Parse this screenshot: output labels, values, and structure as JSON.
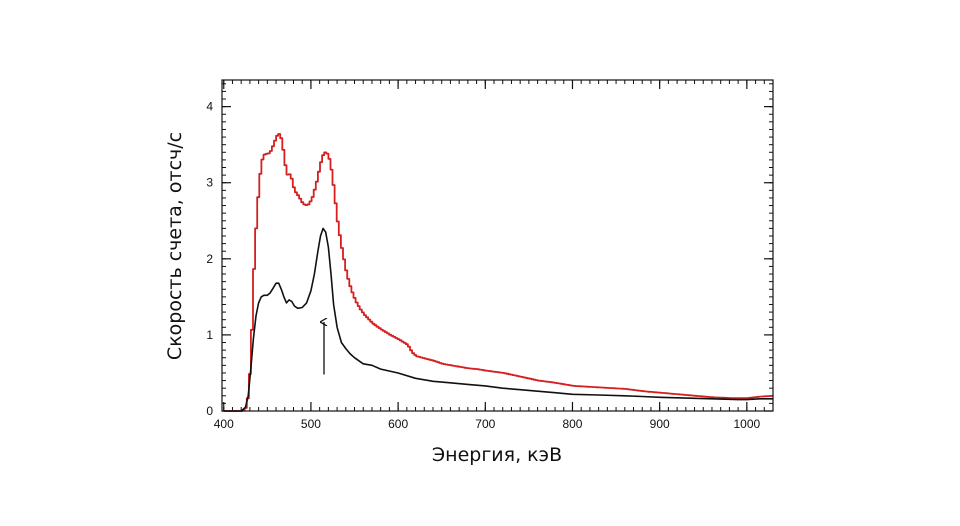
{
  "chart_data": {
    "type": "line",
    "xlabel": "Энергия, кэВ",
    "ylabel": "Скорость счета, отсч/с",
    "xlim": [
      398,
      1030
    ],
    "ylim": [
      0,
      4.35
    ],
    "x_ticks": [
      "400",
      "500",
      "600",
      "700",
      "800",
      "900",
      "1000"
    ],
    "y_ticks": [
      "0",
      "1",
      "2",
      "3",
      "4"
    ],
    "grid": false,
    "legend": "none",
    "series": [
      {
        "color": "#d42020",
        "style": "step",
        "points": [
          [
            400,
            0.0
          ],
          [
            420,
            0.0
          ],
          [
            425,
            0.05
          ],
          [
            428,
            0.3
          ],
          [
            431,
            1.0
          ],
          [
            434,
            2.0
          ],
          [
            437,
            2.6
          ],
          [
            440,
            3.05
          ],
          [
            443,
            3.3
          ],
          [
            446,
            3.38
          ],
          [
            450,
            3.38
          ],
          [
            453,
            3.42
          ],
          [
            456,
            3.5
          ],
          [
            459,
            3.6
          ],
          [
            462,
            3.65
          ],
          [
            465,
            3.58
          ],
          [
            468,
            3.38
          ],
          [
            471,
            3.1
          ],
          [
            474,
            3.12
          ],
          [
            477,
            3.05
          ],
          [
            480,
            2.9
          ],
          [
            485,
            2.82
          ],
          [
            490,
            2.72
          ],
          [
            495,
            2.7
          ],
          [
            500,
            2.78
          ],
          [
            505,
            2.98
          ],
          [
            509,
            3.2
          ],
          [
            512,
            3.35
          ],
          [
            515,
            3.4
          ],
          [
            518,
            3.38
          ],
          [
            521,
            3.28
          ],
          [
            524,
            3.05
          ],
          [
            527,
            2.75
          ],
          [
            530,
            2.45
          ],
          [
            535,
            2.1
          ],
          [
            540,
            1.8
          ],
          [
            545,
            1.6
          ],
          [
            550,
            1.45
          ],
          [
            555,
            1.35
          ],
          [
            560,
            1.27
          ],
          [
            570,
            1.15
          ],
          [
            580,
            1.07
          ],
          [
            590,
            1.0
          ],
          [
            600,
            0.94
          ],
          [
            610,
            0.87
          ],
          [
            615,
            0.77
          ],
          [
            620,
            0.72
          ],
          [
            630,
            0.69
          ],
          [
            640,
            0.66
          ],
          [
            650,
            0.62
          ],
          [
            660,
            0.6
          ],
          [
            670,
            0.58
          ],
          [
            680,
            0.56
          ],
          [
            690,
            0.55
          ],
          [
            700,
            0.53
          ],
          [
            720,
            0.5
          ],
          [
            740,
            0.45
          ],
          [
            760,
            0.4
          ],
          [
            780,
            0.37
          ],
          [
            800,
            0.33
          ],
          [
            830,
            0.31
          ],
          [
            860,
            0.29
          ],
          [
            880,
            0.26
          ],
          [
            900,
            0.24
          ],
          [
            920,
            0.22
          ],
          [
            940,
            0.2
          ],
          [
            960,
            0.18
          ],
          [
            980,
            0.17
          ],
          [
            1000,
            0.17
          ],
          [
            1015,
            0.19
          ],
          [
            1030,
            0.2
          ]
        ]
      },
      {
        "color": "#111111",
        "style": "line",
        "points": [
          [
            400,
            0.0
          ],
          [
            420,
            0.0
          ],
          [
            425,
            0.05
          ],
          [
            428,
            0.2
          ],
          [
            431,
            0.55
          ],
          [
            434,
            0.95
          ],
          [
            437,
            1.25
          ],
          [
            440,
            1.42
          ],
          [
            443,
            1.5
          ],
          [
            446,
            1.52
          ],
          [
            450,
            1.52
          ],
          [
            453,
            1.55
          ],
          [
            457,
            1.62
          ],
          [
            460,
            1.68
          ],
          [
            463,
            1.68
          ],
          [
            466,
            1.6
          ],
          [
            469,
            1.5
          ],
          [
            472,
            1.42
          ],
          [
            475,
            1.46
          ],
          [
            478,
            1.44
          ],
          [
            481,
            1.38
          ],
          [
            485,
            1.35
          ],
          [
            490,
            1.36
          ],
          [
            495,
            1.42
          ],
          [
            500,
            1.58
          ],
          [
            504,
            1.8
          ],
          [
            508,
            2.1
          ],
          [
            511,
            2.3
          ],
          [
            514,
            2.4
          ],
          [
            517,
            2.35
          ],
          [
            520,
            2.15
          ],
          [
            523,
            1.8
          ],
          [
            526,
            1.4
          ],
          [
            530,
            1.1
          ],
          [
            535,
            0.9
          ],
          [
            540,
            0.82
          ],
          [
            545,
            0.75
          ],
          [
            550,
            0.7
          ],
          [
            560,
            0.62
          ],
          [
            570,
            0.6
          ],
          [
            580,
            0.55
          ],
          [
            600,
            0.5
          ],
          [
            620,
            0.43
          ],
          [
            640,
            0.39
          ],
          [
            660,
            0.37
          ],
          [
            680,
            0.35
          ],
          [
            700,
            0.33
          ],
          [
            720,
            0.3
          ],
          [
            740,
            0.28
          ],
          [
            760,
            0.26
          ],
          [
            780,
            0.24
          ],
          [
            800,
            0.22
          ],
          [
            830,
            0.21
          ],
          [
            860,
            0.2
          ],
          [
            880,
            0.19
          ],
          [
            900,
            0.18
          ],
          [
            930,
            0.17
          ],
          [
            960,
            0.16
          ],
          [
            990,
            0.15
          ],
          [
            1000,
            0.15
          ],
          [
            1015,
            0.16
          ],
          [
            1030,
            0.16
          ]
        ]
      }
    ],
    "annotations": [
      {
        "type": "arrow",
        "x": 515,
        "y_from": 0.48,
        "y_to": 1.17,
        "color": "#111111"
      }
    ]
  }
}
